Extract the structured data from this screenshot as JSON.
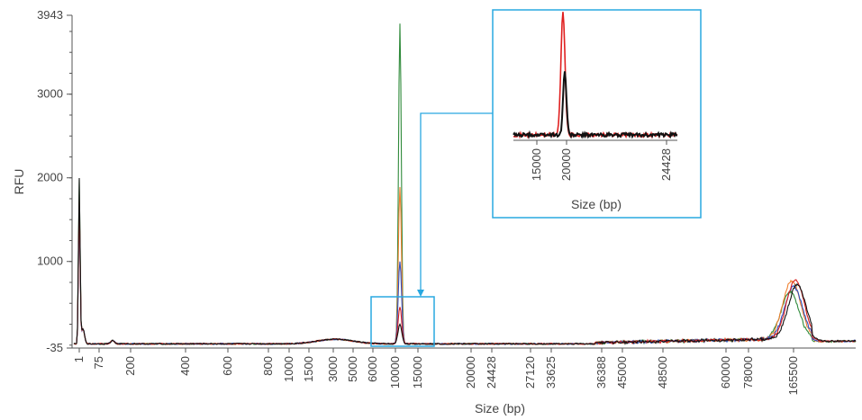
{
  "chart_data": [
    {
      "type": "line",
      "ylabel": "RFU",
      "xlabel": "Size (bp)",
      "ylim": [
        -35,
        3943
      ],
      "y_tick_labels": [
        "3943",
        "3000",
        "2000",
        "1000",
        "-35"
      ],
      "y_ticks": [
        3943,
        3000,
        2000,
        1000,
        -35
      ],
      "x_tick_labels": [
        "1",
        "75",
        "200",
        "400",
        "600",
        "800",
        "1000",
        "1500",
        "3000",
        "5000",
        "6000",
        "10000",
        "15000",
        "20000",
        "24428",
        "27120",
        "33625",
        "36388",
        "45000",
        "48500",
        "60000",
        "78000",
        "165500"
      ],
      "series": [
        {
          "color": "#2f8a3a",
          "peaks": [
            {
              "x": "1",
              "y": 1950
            },
            {
              "x": "18000",
              "y": 3830
            },
            {
              "x": "165500",
              "y": 560
            }
          ]
        },
        {
          "color": "#f08030",
          "peaks": [
            {
              "x": "1",
              "y": 1700
            },
            {
              "x": "18000",
              "y": 1870
            },
            {
              "x": "165500",
              "y": 690
            }
          ]
        },
        {
          "color": "#3050c0",
          "peaks": [
            {
              "x": "1",
              "y": 1600
            },
            {
              "x": "18000",
              "y": 990
            },
            {
              "x": "165500",
              "y": 620
            }
          ]
        },
        {
          "color": "#d82020",
          "peaks": [
            {
              "x": "1",
              "y": 1700
            },
            {
              "x": "18000",
              "y": 440
            },
            {
              "x": "165500",
              "y": 700
            }
          ]
        },
        {
          "color": "#111111",
          "peaks": [
            {
              "x": "1",
              "y": 1960
            },
            {
              "x": "18000",
              "y": 230
            },
            {
              "x": "165500",
              "y": 640
            }
          ]
        }
      ]
    },
    {
      "type": "line",
      "role": "inset",
      "xlabel": "Size (bp)",
      "x_tick_labels": [
        "15000",
        "20000",
        "24428"
      ],
      "series": [
        {
          "color": "#e02020",
          "peak_x": "18000",
          "peak_fraction": 1.0
        },
        {
          "color": "#111111",
          "peak_x": "18000",
          "peak_fraction": 0.52
        }
      ]
    }
  ],
  "colors": {
    "axis": "#555555",
    "highlight": "#29a8e0"
  }
}
